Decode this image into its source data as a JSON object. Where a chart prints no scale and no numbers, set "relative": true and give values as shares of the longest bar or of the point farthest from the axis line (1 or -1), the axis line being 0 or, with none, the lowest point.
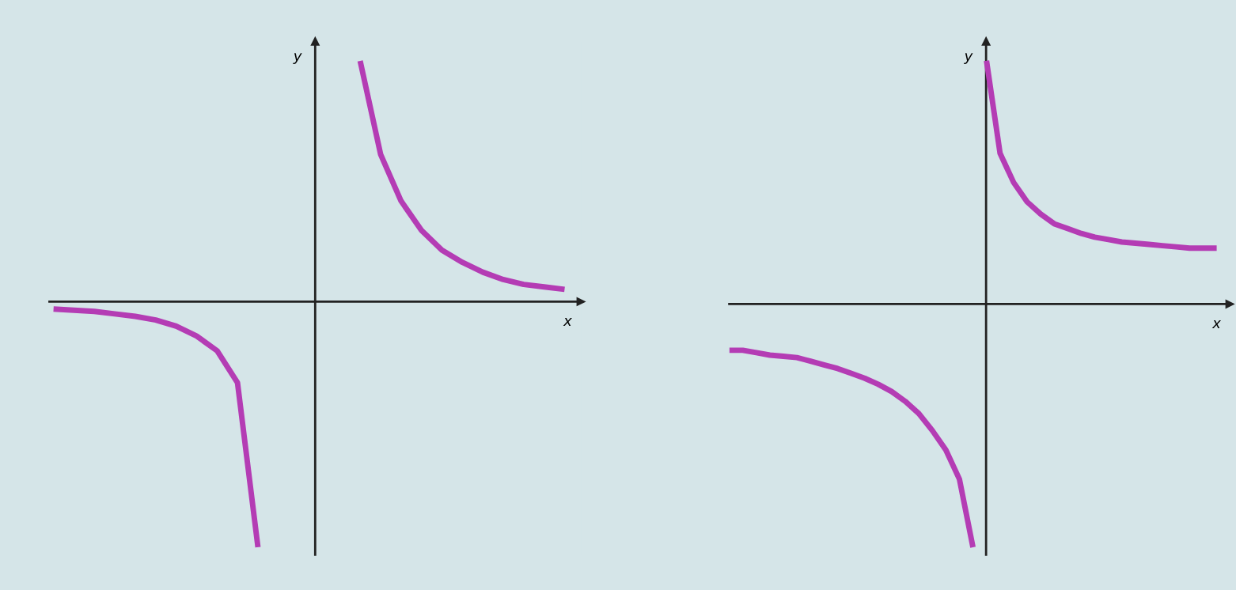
{
  "chart_data": [
    {
      "type": "line",
      "relative": true,
      "xlabel": "x",
      "ylabel": "y",
      "tick_labels": false,
      "categories": [
        null,
        null,
        null,
        null,
        null,
        null,
        null,
        null,
        null,
        null,
        null,
        null,
        null,
        null,
        null,
        null,
        null,
        null,
        null,
        null,
        null,
        null,
        null,
        null,
        null,
        null
      ],
      "series": [
        {
          "color": "#b43cb4",
          "values": [
            -0.03,
            -0.035,
            -0.04,
            -0.05,
            -0.06,
            -0.075,
            -0.1,
            -0.14,
            -0.2,
            -0.33,
            -1.0,
            null,
            null,
            null,
            null,
            null,
            null,
            null,
            null,
            null,
            null,
            null,
            null,
            null,
            null,
            null
          ]
        },
        {
          "color": "#b43cb4",
          "values": [
            null,
            null,
            null,
            null,
            null,
            null,
            null,
            null,
            null,
            null,
            null,
            null,
            null,
            null,
            null,
            0.98,
            0.6,
            0.41,
            0.29,
            0.21,
            0.16,
            0.12,
            0.09,
            0.07,
            0.06,
            0.05
          ]
        }
      ]
    },
    {
      "type": "line",
      "relative": true,
      "xlabel": "x",
      "ylabel": "y",
      "tick_labels": false,
      "categories": [
        null,
        null,
        null,
        null,
        null,
        null,
        null,
        null,
        null,
        null,
        null,
        null,
        null,
        null,
        null,
        null,
        null,
        null,
        null,
        null,
        null,
        null,
        null,
        null,
        null,
        null,
        null,
        null,
        null,
        null,
        null,
        null,
        null,
        null,
        null,
        null,
        null
      ],
      "series": [
        {
          "color": "#b43cb4",
          "values": [
            -0.19,
            -0.19,
            -0.2,
            -0.21,
            -0.215,
            -0.22,
            -0.235,
            -0.25,
            -0.265,
            -0.285,
            -0.305,
            -0.33,
            -0.36,
            -0.4,
            -0.45,
            -0.52,
            -0.6,
            -0.72,
            -1.0,
            null,
            null,
            null,
            null,
            null,
            null,
            null,
            null,
            null,
            null,
            null,
            null,
            null,
            null,
            null,
            null,
            null,
            null
          ]
        },
        {
          "color": "#b43cb4",
          "values": [
            null,
            null,
            null,
            null,
            null,
            null,
            null,
            null,
            null,
            null,
            null,
            null,
            null,
            null,
            null,
            null,
            null,
            null,
            null,
            1.0,
            0.62,
            0.5,
            0.42,
            0.37,
            0.33,
            0.31,
            0.29,
            0.275,
            0.265,
            0.255,
            0.25,
            0.245,
            0.24,
            0.235,
            0.23,
            0.23,
            0.23
          ]
        }
      ]
    }
  ]
}
